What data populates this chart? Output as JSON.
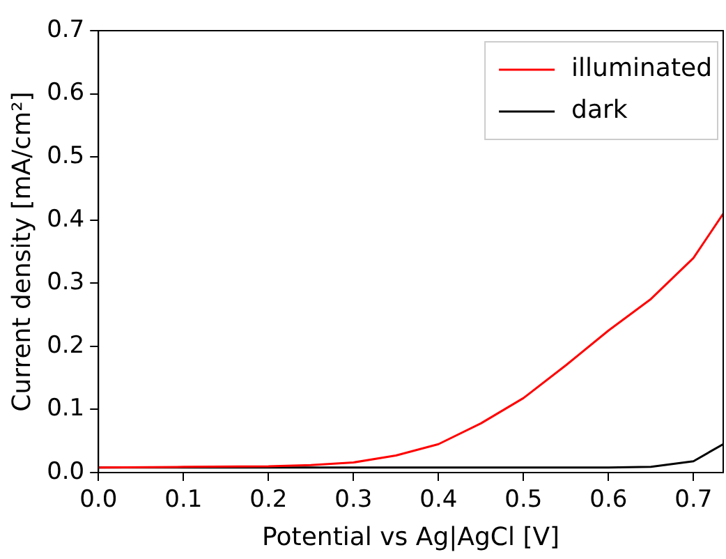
{
  "chart_data": {
    "type": "line",
    "xlabel": "Potential vs Ag|AgCl [V]",
    "ylabel": "Current density [mA/cm²]",
    "xlim": [
      0,
      0.735
    ],
    "ylim": [
      0,
      0.7
    ],
    "xticks": [
      {
        "value": 0,
        "label": "0.0"
      },
      {
        "value": 0.1,
        "label": "0.1"
      },
      {
        "value": 0.2,
        "label": "0.2"
      },
      {
        "value": 0.3,
        "label": "0.3"
      },
      {
        "value": 0.4,
        "label": "0.4"
      },
      {
        "value": 0.5,
        "label": "0.5"
      },
      {
        "value": 0.6,
        "label": "0.6"
      },
      {
        "value": 0.7,
        "label": "0.7"
      }
    ],
    "yticks": [
      {
        "value": 0,
        "label": "0.0"
      },
      {
        "value": 0.1,
        "label": "0.1"
      },
      {
        "value": 0.2,
        "label": "0.2"
      },
      {
        "value": 0.3,
        "label": "0.3"
      },
      {
        "value": 0.4,
        "label": "0.4"
      },
      {
        "value": 0.5,
        "label": "0.5"
      },
      {
        "value": 0.6,
        "label": "0.6"
      },
      {
        "value": 0.7,
        "label": "0.7"
      }
    ],
    "grid": false,
    "legend": "top right",
    "marker": "none",
    "line_style": "solid",
    "series": [
      {
        "name": "illuminated",
        "color": "#ff0000",
        "x": [
          0,
          0.1,
          0.2,
          0.25,
          0.3,
          0.35,
          0.4,
          0.45,
          0.5,
          0.55,
          0.6,
          0.65,
          0.7,
          0.735
        ],
        "values": [
          0.008,
          0.009,
          0.01,
          0.012,
          0.016,
          0.027,
          0.045,
          0.078,
          0.118,
          0.17,
          0.225,
          0.275,
          0.34,
          0.41
        ]
      },
      {
        "name": "dark",
        "color": "#000000",
        "x": [
          0,
          0.1,
          0.2,
          0.3,
          0.4,
          0.5,
          0.6,
          0.65,
          0.7,
          0.735
        ],
        "values": [
          0.008,
          0.008,
          0.008,
          0.008,
          0.008,
          0.008,
          0.008,
          0.009,
          0.018,
          0.045
        ]
      }
    ]
  }
}
